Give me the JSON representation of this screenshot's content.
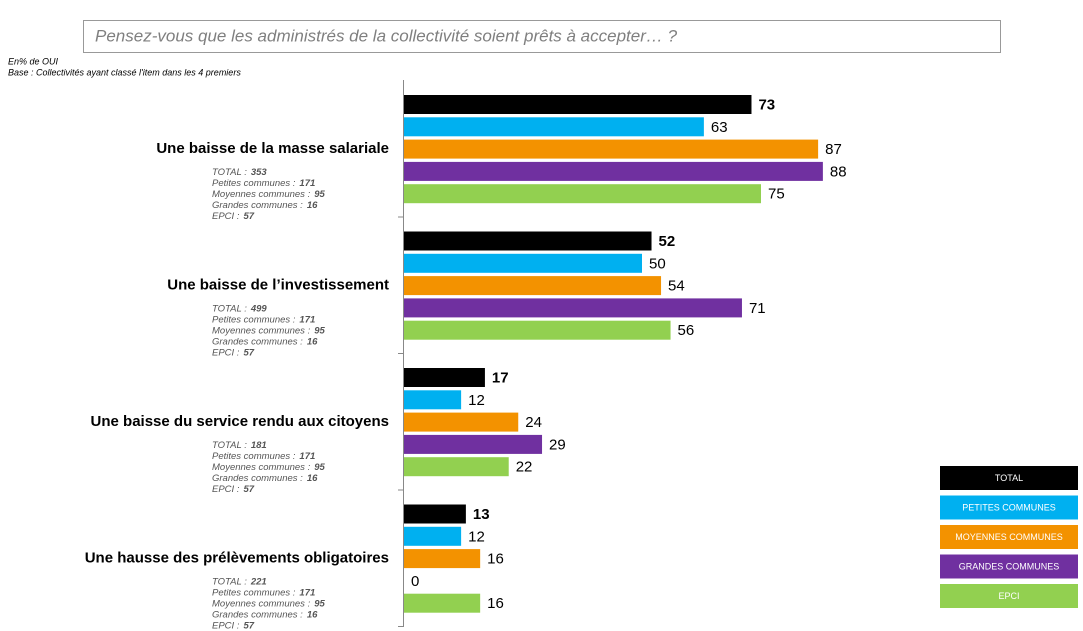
{
  "chart_data": {
    "type": "hbar",
    "title": "Pensez-vous que les administrés de la collectivité soient prêts à accepter… ?",
    "notes": [
      "En% de OUI",
      "Base : Collectivités ayant classé l'item dans les 4 premiers"
    ],
    "categories": [
      "Une baisse de la masse salariale",
      "Une baisse de l’investissement",
      "Une baisse du service rendu aux citoyens",
      "Une hausse des prélèvements obligatoires"
    ],
    "bases": [
      [
        {
          "label": "TOTAL :",
          "n": 353
        },
        {
          "label": "Petites communes :",
          "n": 171
        },
        {
          "label": "Moyennes communes :",
          "n": 95
        },
        {
          "label": "Grandes communes :",
          "n": 16
        },
        {
          "label": "EPCI :",
          "n": 57
        }
      ],
      [
        {
          "label": "TOTAL :",
          "n": 499
        },
        {
          "label": "Petites communes :",
          "n": 171
        },
        {
          "label": "Moyennes communes :",
          "n": 95
        },
        {
          "label": "Grandes communes :",
          "n": 16
        },
        {
          "label": "EPCI :",
          "n": 57
        }
      ],
      [
        {
          "label": "TOTAL :",
          "n": 181
        },
        {
          "label": "Petites communes :",
          "n": 171
        },
        {
          "label": "Moyennes communes :",
          "n": 95
        },
        {
          "label": "Grandes communes :",
          "n": 16
        },
        {
          "label": "EPCI :",
          "n": 57
        }
      ],
      [
        {
          "label": "TOTAL :",
          "n": 221
        },
        {
          "label": "Petites communes :",
          "n": 171
        },
        {
          "label": "Moyennes communes :",
          "n": 95
        },
        {
          "label": "Grandes communes :",
          "n": 16
        },
        {
          "label": "EPCI :",
          "n": 57
        }
      ]
    ],
    "series": [
      {
        "name": "TOTAL",
        "color": "#000000",
        "values": [
          73,
          52,
          17,
          13
        ]
      },
      {
        "name": "PETITES COMMUNES",
        "color": "#00b0f0",
        "values": [
          63,
          50,
          12,
          12
        ]
      },
      {
        "name": "MOYENNES COMMUNES",
        "color": "#f39200",
        "values": [
          87,
          54,
          24,
          16
        ]
      },
      {
        "name": "GRANDES COMMUNES",
        "color": "#7030a0",
        "values": [
          88,
          71,
          29,
          0
        ]
      },
      {
        "name": "EPCI",
        "color": "#92d050",
        "values": [
          75,
          56,
          22,
          16
        ]
      }
    ],
    "xlim": [
      0,
      100
    ]
  }
}
